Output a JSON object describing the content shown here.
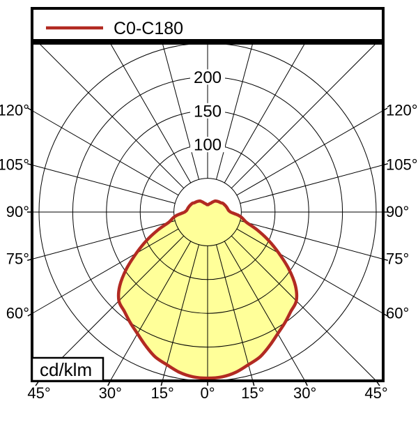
{
  "units_label": "cd/klm",
  "colors": {
    "curve_stroke": "#b22a22",
    "curve_fill": "#ffff99",
    "grid": "#000000",
    "background": "#ffffff"
  },
  "chart_data": {
    "type": "line",
    "subtype": "polar-photometric-luminaire-distribution",
    "units": "cd/klm",
    "angle_unit": "deg",
    "angle_zero_direction": "down",
    "angle_grid_step_deg": 15,
    "grid": true,
    "legend_position": "top",
    "radial_axis": {
      "min": 0,
      "max": 250,
      "circle_values": [
        50,
        100,
        150,
        200,
        250
      ],
      "labeled_values": [
        100,
        150,
        200
      ]
    },
    "side_angle_labels": [
      "120°",
      "105°",
      "90°",
      "75°",
      "60°"
    ],
    "side_angle_labels_sides": [
      "left",
      "right"
    ],
    "bottom_angle_labels": [
      "45°",
      "30°",
      "15°",
      "0°",
      "15°",
      "30°",
      "45°"
    ],
    "series": [
      {
        "name": "C0-C180",
        "color": "#b22a22",
        "fill": "#ffff99",
        "symmetric": true,
        "profile_gamma_cd_per_klm": [
          [
            0,
            246
          ],
          [
            5,
            245
          ],
          [
            10,
            241
          ],
          [
            15,
            234
          ],
          [
            20,
            228
          ],
          [
            25,
            218
          ],
          [
            30,
            208
          ],
          [
            35,
            200
          ],
          [
            40,
            192
          ],
          [
            45,
            186
          ],
          [
            50,
            170
          ],
          [
            55,
            147
          ],
          [
            60,
            122
          ],
          [
            65,
            100
          ],
          [
            70,
            79
          ],
          [
            75,
            60
          ],
          [
            78,
            55
          ],
          [
            81,
            51
          ],
          [
            84,
            46
          ],
          [
            87,
            39
          ],
          [
            90,
            34
          ],
          [
            95,
            31
          ],
          [
            100,
            30
          ],
          [
            105,
            29
          ],
          [
            110,
            28
          ],
          [
            115,
            27
          ],
          [
            120,
            26
          ],
          [
            125,
            24
          ],
          [
            130,
            23
          ],
          [
            135,
            22
          ],
          [
            140,
            21
          ],
          [
            145,
            20
          ],
          [
            150,
            18
          ],
          [
            155,
            16
          ],
          [
            160,
            14
          ],
          [
            165,
            13
          ],
          [
            170,
            12
          ],
          [
            175,
            11
          ],
          [
            180,
            11
          ]
        ]
      }
    ]
  }
}
